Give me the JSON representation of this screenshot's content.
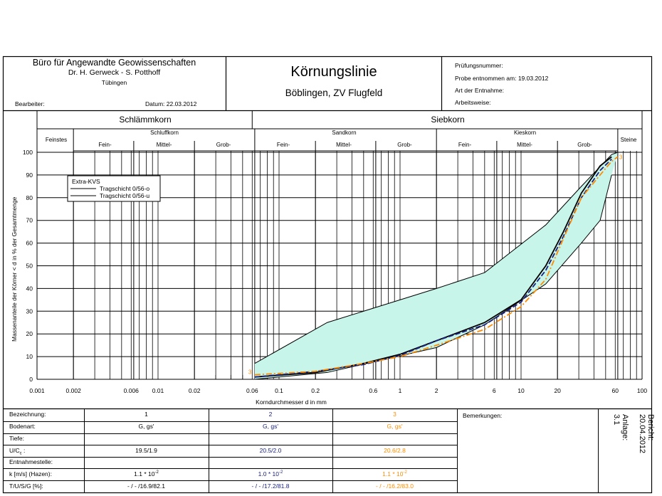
{
  "header": {
    "org_name": "Büro für Angewandte Geowissenschaften",
    "org_people": "Dr. H. Gerweck - S. Potthoff",
    "org_city": "Tübingen",
    "editor_label": "Bearbeiter:",
    "date_label": "Datum:  22.03.2012",
    "title": "Körnungslinie",
    "subtitle": "Böblingen, ZV Flugfeld",
    "test_no_label": "Prüfungsnummer:",
    "sample_taken_label": "Probe entnommen am:  19.03.2012",
    "sample_type_label": "Art der Entnahme:",
    "method_label": "Arbeitsweise:"
  },
  "chart_data": {
    "type": "line",
    "x_scale": "log",
    "xlim": [
      0.001,
      100
    ],
    "ylim": [
      0,
      100
    ],
    "xlabel": "Korndurchmesser d in mm",
    "ylabel": "Massenanteile der Körner < d in % der Gesamtmenge",
    "x_ticks": [
      0.001,
      0.002,
      0.006,
      0.01,
      0.02,
      0.06,
      0.1,
      0.2,
      0.6,
      1,
      2,
      6,
      10,
      20,
      60,
      100
    ],
    "x_tick_labels": [
      "0.001",
      "0.002",
      "0.006",
      "0.01",
      "0.02",
      "0.06",
      "0.1",
      "0.2",
      "0.6",
      "1",
      "2",
      "6",
      "10",
      "20",
      "60",
      "100"
    ],
    "y_ticks": [
      0,
      10,
      20,
      30,
      40,
      50,
      60,
      70,
      80,
      90,
      100
    ],
    "grid": true,
    "legend_position": "top-left",
    "legend_title": "Extra-KVS",
    "envelope": {
      "color": "#c8f5ea",
      "upper": {
        "name": "Tragschicht 0/56-o",
        "x": [
          0.063,
          0.25,
          2,
          5,
          16,
          31.5,
          56,
          63
        ],
        "y": [
          7,
          25,
          40,
          47,
          68,
          85,
          99,
          100
        ]
      },
      "lower": {
        "name": "Tragschicht 0/56-u",
        "x": [
          0.063,
          0.25,
          2,
          5,
          16,
          31.5,
          45,
          56
        ],
        "y": [
          0,
          3,
          14,
          24,
          42,
          60,
          70,
          90
        ]
      }
    },
    "series": [
      {
        "label": "",
        "color": "#000000",
        "dash": "solid",
        "x": [
          0.063,
          0.2,
          0.5,
          1,
          2,
          5,
          10,
          16,
          22.4,
          31.5,
          45,
          56
        ],
        "y": [
          1,
          3,
          7,
          11,
          17,
          25,
          35,
          50,
          65,
          82,
          94,
          98
        ]
      },
      {
        "label": "",
        "color": "#1a237e",
        "dash": "dash",
        "x": [
          0.063,
          0.2,
          0.5,
          1,
          2,
          5,
          10,
          16,
          22.4,
          31.5,
          45,
          56
        ],
        "y": [
          1,
          3.5,
          6.5,
          10.5,
          17,
          24,
          34,
          48,
          63,
          80,
          92,
          97
        ]
      },
      {
        "label": "3",
        "color": "#ff8c00",
        "dash": "dashdot",
        "x": [
          0.063,
          0.2,
          0.5,
          1,
          2,
          5,
          10,
          16,
          22.4,
          31.5,
          45,
          56,
          63
        ],
        "y": [
          2,
          3.5,
          7,
          10,
          15,
          22,
          32,
          44,
          62,
          80,
          90,
          96,
          98
        ]
      }
    ]
  },
  "fractions": {
    "schlaemmkorn": "Schlämmkorn",
    "siebkorn": "Siebkorn",
    "feinstes": "Feinstes",
    "schluffkorn": "Schluffkorn",
    "sandkorn": "Sandkorn",
    "kieskorn": "Kieskorn",
    "steine": "Steine",
    "fein": "Fein-",
    "mittel": "Mittel-",
    "grob": "Grob-"
  },
  "results_table": {
    "row_labels": [
      "Bezeichnung:",
      "Bodenart:",
      "Tiefe:",
      "U/C",
      "Entnahmestelle:",
      "k [m/s] (Hazen):",
      "T/U/S/G [%]:"
    ],
    "uc_sub": "c",
    "uc_suffix": " :",
    "columns": [
      {
        "color": "#000000",
        "values": [
          "1",
          "G, gs'",
          "",
          "19.5/1.9",
          "",
          "1.1 * 10",
          "- / - /16.9/82.1"
        ],
        "k_exp": "-2"
      },
      {
        "color": "#1a237e",
        "values": [
          "2",
          "G, gs'",
          "",
          "20.5/2.0",
          "",
          "1.0 * 10",
          "- / - /17.2/81.8"
        ],
        "k_exp": "-2"
      },
      {
        "color": "#ff8c00",
        "values": [
          "3",
          "G, gs'",
          "",
          "20.6/2.8",
          "",
          "1.1 * 10",
          "- / - /16.2/83.0"
        ],
        "k_exp": "-2"
      }
    ],
    "remarks_label": "Bemerkungen:",
    "report_label": "Bericht:",
    "report_date": "20.04.2012",
    "annex_label": "Anlage:",
    "annex_value": "3.1"
  }
}
